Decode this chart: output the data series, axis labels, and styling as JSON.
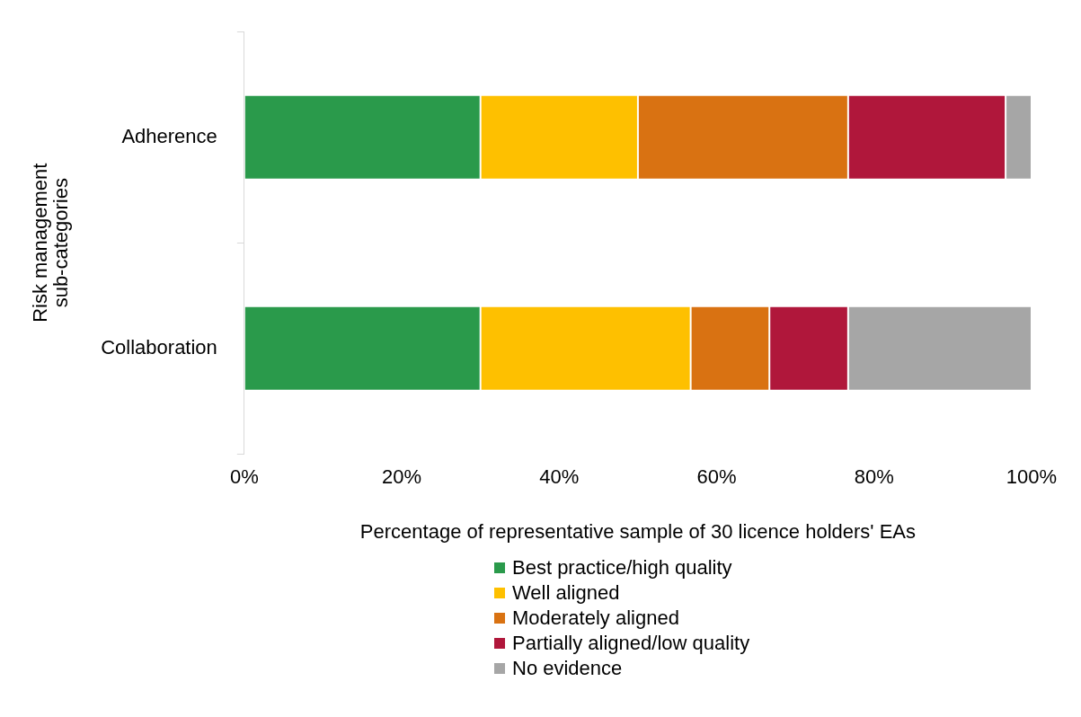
{
  "chart_data": {
    "type": "bar",
    "orientation": "horizontal",
    "stacked": true,
    "categories": [
      "Adherence",
      "Collaboration"
    ],
    "xlabel": "Percentage of representative sample of 30 licence holders' EAs",
    "ylabel": "Risk management sub-categories",
    "xlim": [
      0,
      100
    ],
    "xticks": [
      {
        "value": 0,
        "label": "0%"
      },
      {
        "value": 20,
        "label": "20%"
      },
      {
        "value": 40,
        "label": "40%"
      },
      {
        "value": 60,
        "label": "60%"
      },
      {
        "value": 80,
        "label": "80%"
      },
      {
        "value": 100,
        "label": "100%"
      }
    ],
    "series": [
      {
        "name": "Best practice/high quality",
        "color": "#2a9a4b",
        "values": [
          30,
          30
        ]
      },
      {
        "name": "Well aligned",
        "color": "#fec000",
        "values": [
          20,
          26.7
        ]
      },
      {
        "name": "Moderately aligned",
        "color": "#d97212",
        "values": [
          26.7,
          10
        ]
      },
      {
        "name": "Partially aligned/low quality",
        "color": "#b0173b",
        "values": [
          20,
          10
        ]
      },
      {
        "name": "No evidence",
        "color": "#a6a6a6",
        "values": [
          3.3,
          23.3
        ]
      }
    ],
    "grid": false,
    "legend": "bottom"
  }
}
